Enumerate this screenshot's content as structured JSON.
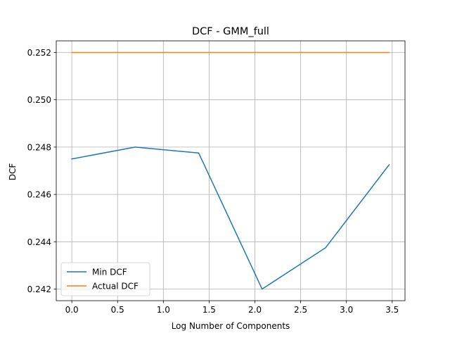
{
  "chart_data": {
    "type": "line",
    "title": "DCF - GMM_full",
    "xlabel": "Log Number of Components",
    "ylabel": "DCF",
    "xlim": [
      -0.17,
      3.64
    ],
    "ylim": [
      0.24151,
      0.25249
    ],
    "xticks": [
      0.0,
      0.5,
      1.0,
      1.5,
      2.0,
      2.5,
      3.0,
      3.5
    ],
    "xtick_labels": [
      "0.0",
      "0.5",
      "1.0",
      "1.5",
      "2.0",
      "2.5",
      "3.0",
      "3.5"
    ],
    "yticks": [
      0.242,
      0.244,
      0.246,
      0.248,
      0.25,
      0.252
    ],
    "ytick_labels": [
      "0.242",
      "0.244",
      "0.246",
      "0.248",
      "0.250",
      "0.252"
    ],
    "grid": true,
    "legend": "lower-left",
    "series": [
      {
        "name": "Min DCF",
        "color": "#1f77b4",
        "x": [
          0.0,
          0.693,
          1.386,
          2.079,
          2.773,
          3.466
        ],
        "y": [
          0.2475,
          0.248,
          0.24775,
          0.242,
          0.24375,
          0.24725
        ]
      },
      {
        "name": "Actual DCF",
        "color": "#ff7f0e",
        "x": [
          0.0,
          0.693,
          1.386,
          2.079,
          2.773,
          3.466
        ],
        "y": [
          0.252,
          0.252,
          0.252,
          0.252,
          0.252,
          0.252
        ]
      }
    ]
  }
}
